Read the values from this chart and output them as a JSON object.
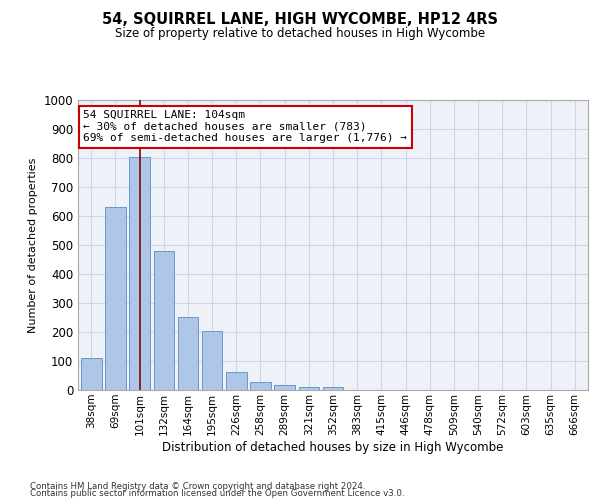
{
  "title": "54, SQUIRREL LANE, HIGH WYCOMBE, HP12 4RS",
  "subtitle": "Size of property relative to detached houses in High Wycombe",
  "xlabel": "Distribution of detached houses by size in High Wycombe",
  "ylabel": "Number of detached properties",
  "bar_values": [
    110,
    630,
    805,
    480,
    252,
    202,
    62,
    27,
    18,
    12,
    10,
    0,
    0,
    0,
    0,
    0,
    0,
    0,
    0,
    0,
    0
  ],
  "categories": [
    "38sqm",
    "69sqm",
    "101sqm",
    "132sqm",
    "164sqm",
    "195sqm",
    "226sqm",
    "258sqm",
    "289sqm",
    "321sqm",
    "352sqm",
    "383sqm",
    "415sqm",
    "446sqm",
    "478sqm",
    "509sqm",
    "540sqm",
    "572sqm",
    "603sqm",
    "635sqm",
    "666sqm"
  ],
  "bar_color": "#aec6e8",
  "bar_edge_color": "#5a8fc2",
  "property_line_idx": 2,
  "property_line_color": "#8b0000",
  "annotation_text": "54 SQUIRREL LANE: 104sqm\n← 30% of detached houses are smaller (783)\n69% of semi-detached houses are larger (1,776) →",
  "annotation_box_facecolor": "#ffffff",
  "annotation_box_edgecolor": "#cc0000",
  "ylim": [
    0,
    1000
  ],
  "yticks": [
    0,
    100,
    200,
    300,
    400,
    500,
    600,
    700,
    800,
    900,
    1000
  ],
  "grid_color": "#ccd5e8",
  "background_color": "#eef2f8",
  "footer_line1": "Contains HM Land Registry data © Crown copyright and database right 2024.",
  "footer_line2": "Contains public sector information licensed under the Open Government Licence v3.0."
}
